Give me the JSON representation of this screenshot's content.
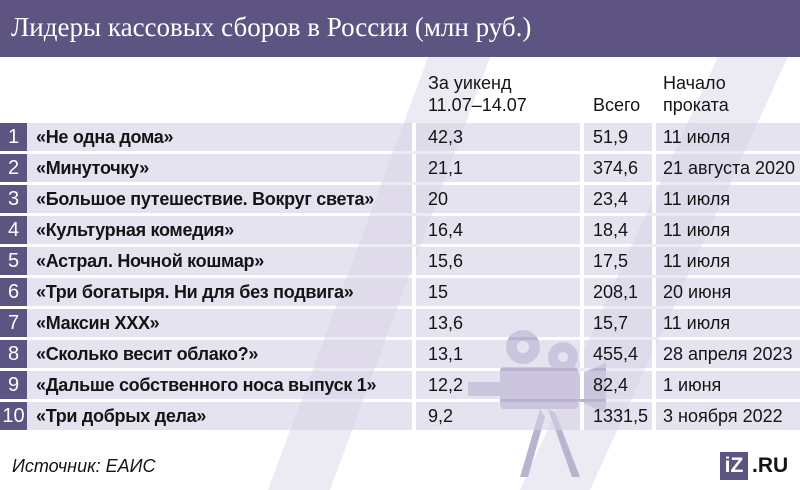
{
  "title": "Лидеры кассовых сборов в России (млн руб.)",
  "columns": {
    "weekend_line1": "За уикенд",
    "weekend_line2": "11.07–14.07",
    "total": "Всего",
    "date_line1": "Начало",
    "date_line2": "проката"
  },
  "source": "Источник: ЕАИС",
  "logo": {
    "box": "iZ",
    "text": ".RU"
  },
  "colors": {
    "accent": "#5d5482",
    "row_tint": "#d6d2e6",
    "background": "#ffffff"
  },
  "chart_data": {
    "type": "table",
    "title": "Лидеры кассовых сборов в России (млн руб.)",
    "headers": [
      "За уикенд 11.07–14.07",
      "Всего",
      "Начало проката"
    ],
    "rows": [
      {
        "rank": "1",
        "title": "«Не одна дома»",
        "weekend": "42,3",
        "total": "51,9",
        "start": "11 июля"
      },
      {
        "rank": "2",
        "title": "«Минуточку»",
        "weekend": "21,1",
        "total": "374,6",
        "start": "21 августа 2020"
      },
      {
        "rank": "3",
        "title": "«Большое путешествие. Вокруг света»",
        "weekend": "20",
        "total": "23,4",
        "start": "11 июля"
      },
      {
        "rank": "4",
        "title": "«Культурная комедия»",
        "weekend": "16,4",
        "total": "18,4",
        "start": "11 июля"
      },
      {
        "rank": "5",
        "title": "«Астрал. Ночной кошмар»",
        "weekend": "15,6",
        "total": "17,5",
        "start": "11 июля"
      },
      {
        "rank": "6",
        "title": "«Три богатыря. Ни для без подвига»",
        "weekend": "15",
        "total": "208,1",
        "start": "20 июня"
      },
      {
        "rank": "7",
        "title": "«Максин XXX»",
        "weekend": "13,6",
        "total": "15,7",
        "start": "11 июля"
      },
      {
        "rank": "8",
        "title": "«Сколько весит облако?»",
        "weekend": "13,1",
        "total": "455,4",
        "start": "28 апреля 2023"
      },
      {
        "rank": "9",
        "title": "«Дальше собственного носа выпуск 1»",
        "weekend": "12,2",
        "total": "82,4",
        "start": "1 июня"
      },
      {
        "rank": "10",
        "title": "«Три добрых дела»",
        "weekend": "9,2",
        "total": "1331,5",
        "start": "3 ноября 2022"
      }
    ]
  }
}
